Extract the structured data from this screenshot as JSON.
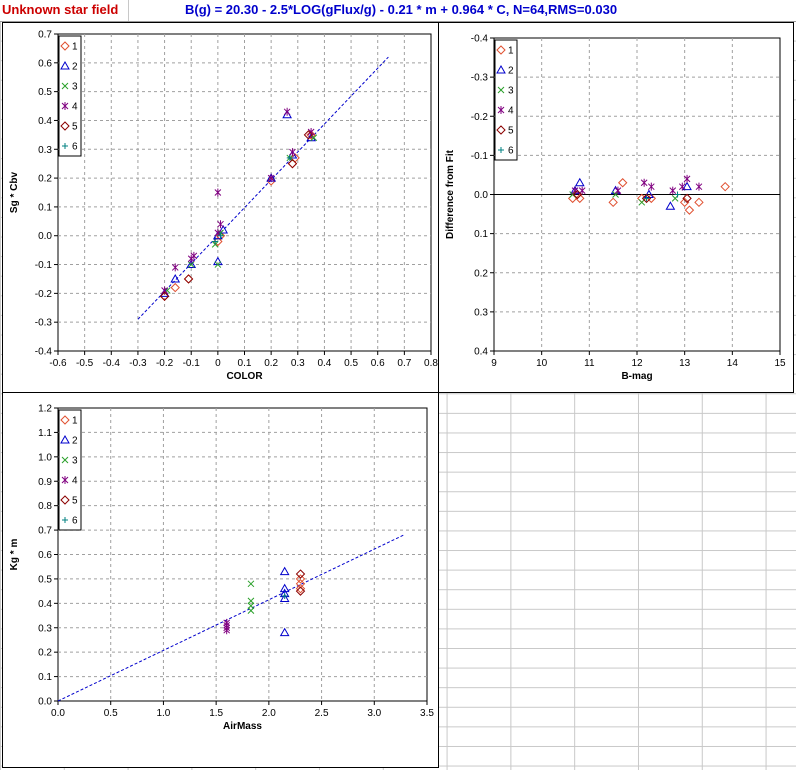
{
  "header": {
    "field_name": "Unknown star field",
    "equation": "B(g) = 20.30 - 2.5*LOG(gFlux/g) - 0.21 * m + 0.964 * C, N=64,RMS=0.030"
  },
  "legend": {
    "series": [
      {
        "label": "1",
        "marker": "diamond",
        "color": "#e05030"
      },
      {
        "label": "2",
        "marker": "triangle",
        "color": "#0000cc"
      },
      {
        "label": "3",
        "marker": "x",
        "color": "#2aa02a"
      },
      {
        "label": "4",
        "marker": "asterisk",
        "color": "#800080"
      },
      {
        "label": "5",
        "marker": "diamond",
        "color": "#8b0000"
      },
      {
        "label": "6",
        "marker": "plus",
        "color": "#008080"
      }
    ]
  },
  "chart_data": [
    {
      "type": "scatter",
      "xlabel": "COLOR",
      "ylabel": "Sg * Cbv",
      "xlim": [
        -0.6,
        0.8
      ],
      "ylim": [
        -0.4,
        0.7
      ],
      "xticks": [
        "-0.6",
        "-0.5",
        "-0.4",
        "-0.3",
        "-0.2",
        "-0.1",
        "0",
        "0.1",
        "0.2",
        "0.3",
        "0.4",
        "0.5",
        "0.6",
        "0.7",
        "0.8"
      ],
      "yticks": [
        "0.7",
        "0.6",
        "0.5",
        "0.4",
        "0.3",
        "0.2",
        "0.1",
        "0.0",
        "-0.1",
        "-0.2",
        "-0.3",
        "-0.4"
      ],
      "grid": true,
      "legend_position": "top-left",
      "fit_line": {
        "x": [
          -0.3,
          0.64
        ],
        "y": [
          -0.29,
          0.62
        ],
        "color": "#0000cc",
        "dashed": true
      },
      "series": [
        {
          "name": "1",
          "points": [
            [
              -0.2,
              -0.21
            ],
            [
              -0.16,
              -0.18
            ],
            [
              -0.11,
              -0.15
            ],
            [
              0.0,
              -0.02
            ],
            [
              0.01,
              0.0
            ],
            [
              0.2,
              0.19
            ],
            [
              0.28,
              0.25
            ],
            [
              0.29,
              0.27
            ],
            [
              0.35,
              0.35
            ]
          ]
        },
        {
          "name": "2",
          "points": [
            [
              -0.2,
              -0.2
            ],
            [
              -0.16,
              -0.15
            ],
            [
              -0.1,
              -0.1
            ],
            [
              0.0,
              -0.09
            ],
            [
              0.0,
              0.0
            ],
            [
              0.02,
              0.02
            ],
            [
              0.2,
              0.2
            ],
            [
              0.26,
              0.42
            ],
            [
              0.28,
              0.28
            ],
            [
              0.35,
              0.34
            ]
          ]
        },
        {
          "name": "3",
          "points": [
            [
              -0.19,
              -0.19
            ],
            [
              -0.1,
              -0.1
            ],
            [
              -0.01,
              -0.03
            ],
            [
              0.0,
              -0.1
            ],
            [
              0.01,
              0.01
            ],
            [
              0.27,
              0.27
            ],
            [
              0.36,
              0.34
            ]
          ]
        },
        {
          "name": "4",
          "points": [
            [
              -0.2,
              -0.19
            ],
            [
              -0.16,
              -0.11
            ],
            [
              -0.1,
              -0.08
            ],
            [
              -0.09,
              -0.07
            ],
            [
              0.0,
              0.15
            ],
            [
              0.01,
              0.04
            ],
            [
              0.0,
              0.01
            ],
            [
              0.2,
              0.2
            ],
            [
              0.26,
              0.43
            ],
            [
              0.28,
              0.29
            ],
            [
              0.35,
              0.36
            ]
          ]
        },
        {
          "name": "5",
          "points": [
            [
              -0.2,
              -0.21
            ],
            [
              -0.11,
              -0.15
            ],
            [
              0.28,
              0.25
            ],
            [
              0.34,
              0.35
            ]
          ]
        },
        {
          "name": "6",
          "points": [
            [
              -0.01,
              -0.02
            ],
            [
              0.01,
              0.0
            ],
            [
              0.27,
              0.27
            ]
          ]
        }
      ]
    },
    {
      "type": "scatter",
      "xlabel": "B-mag",
      "ylabel": "Difference from Fit",
      "xlim": [
        9,
        15
      ],
      "ylim": [
        -0.4,
        0.4
      ],
      "y_inverted": true,
      "xticks": [
        "9",
        "10",
        "11",
        "12",
        "13",
        "14",
        "15"
      ],
      "yticks": [
        "-0.4",
        "-0.3",
        "-0.2",
        "-0.1",
        "0.0",
        "0.1",
        "0.2",
        "0.3",
        "0.4"
      ],
      "grid": true,
      "legend_position": "top-left",
      "zero_line": true,
      "series": [
        {
          "name": "1",
          "points": [
            [
              10.65,
              0.01
            ],
            [
              10.8,
              0.01
            ],
            [
              11.5,
              0.02
            ],
            [
              11.7,
              -0.03
            ],
            [
              12.1,
              0.01
            ],
            [
              12.3,
              0.01
            ],
            [
              13.0,
              0.02
            ],
            [
              13.1,
              0.04
            ],
            [
              13.3,
              0.02
            ],
            [
              13.85,
              -0.02
            ]
          ]
        },
        {
          "name": "2",
          "points": [
            [
              10.7,
              -0.01
            ],
            [
              10.8,
              -0.03
            ],
            [
              11.55,
              -0.01
            ],
            [
              12.25,
              0.0
            ],
            [
              12.7,
              0.03
            ],
            [
              13.05,
              -0.02
            ]
          ]
        },
        {
          "name": "3",
          "points": [
            [
              10.65,
              0.0
            ],
            [
              11.55,
              0.0
            ],
            [
              12.1,
              0.02
            ],
            [
              12.8,
              0.01
            ]
          ]
        },
        {
          "name": "4",
          "points": [
            [
              10.7,
              -0.01
            ],
            [
              10.85,
              -0.01
            ],
            [
              11.6,
              -0.01
            ],
            [
              12.15,
              -0.03
            ],
            [
              12.3,
              -0.02
            ],
            [
              12.75,
              -0.01
            ],
            [
              12.95,
              -0.02
            ],
            [
              13.05,
              -0.04
            ],
            [
              13.3,
              -0.02
            ]
          ]
        },
        {
          "name": "5",
          "points": [
            [
              10.75,
              0.0
            ],
            [
              12.2,
              0.01
            ],
            [
              13.05,
              0.01
            ]
          ]
        },
        {
          "name": "6",
          "points": [
            [
              12.2,
              0.01
            ],
            [
              12.85,
              0.0
            ]
          ]
        }
      ]
    },
    {
      "type": "scatter",
      "xlabel": "AirMass",
      "ylabel": "Kg * m",
      "xlim": [
        0.0,
        3.5
      ],
      "ylim": [
        0.0,
        1.2
      ],
      "xticks": [
        "0.0",
        "0.5",
        "1.0",
        "1.5",
        "2.0",
        "2.5",
        "3.0",
        "3.5"
      ],
      "yticks": [
        "1.2",
        "1.1",
        "1.0",
        "0.9",
        "0.8",
        "0.7",
        "0.6",
        "0.5",
        "0.4",
        "0.3",
        "0.2",
        "0.1",
        "0.0"
      ],
      "grid": true,
      "legend_position": "top-left",
      "fit_line": {
        "x": [
          0.0,
          3.28
        ],
        "y": [
          0.0,
          0.68
        ],
        "color": "#0000cc",
        "dashed": true
      },
      "series": [
        {
          "name": "1",
          "points": [
            [
              2.3,
              0.46
            ],
            [
              2.3,
              0.48
            ],
            [
              2.3,
              0.5
            ]
          ]
        },
        {
          "name": "2",
          "points": [
            [
              2.15,
              0.28
            ],
            [
              2.15,
              0.42
            ],
            [
              2.15,
              0.44
            ],
            [
              2.15,
              0.46
            ],
            [
              2.15,
              0.53
            ]
          ]
        },
        {
          "name": "3",
          "points": [
            [
              1.83,
              0.37
            ],
            [
              1.83,
              0.39
            ],
            [
              1.83,
              0.41
            ],
            [
              1.83,
              0.48
            ]
          ]
        },
        {
          "name": "4",
          "points": [
            [
              1.6,
              0.29
            ],
            [
              1.6,
              0.3
            ],
            [
              1.6,
              0.31
            ],
            [
              1.6,
              0.32
            ]
          ]
        },
        {
          "name": "5",
          "points": [
            [
              2.3,
              0.45
            ],
            [
              2.3,
              0.52
            ]
          ]
        },
        {
          "name": "6",
          "points": [
            [
              2.15,
              0.43
            ]
          ]
        }
      ]
    }
  ]
}
